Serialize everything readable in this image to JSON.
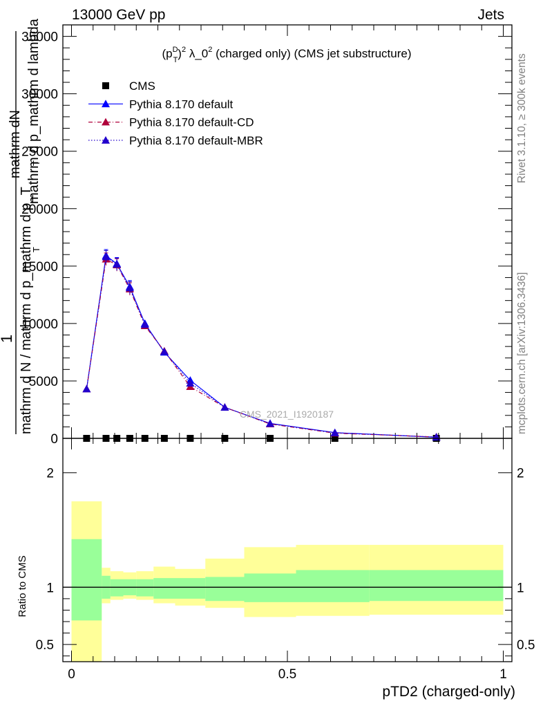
{
  "header": {
    "left": "13000 GeV pp",
    "right": "Jets"
  },
  "side_labels": {
    "rivet": "Rivet 3.1.10, ≥ 300k events",
    "mcplots": "mcplots.cern.ch [arXiv:1306.3436]"
  },
  "watermark": "CMS_2021_I1920187",
  "legend_items": [
    {
      "label": "CMS",
      "color": "#000000",
      "marker": "square",
      "line": "none"
    },
    {
      "label": "Pythia 8.170 default",
      "color": "#0000ff",
      "marker": "triangle",
      "line": "solid"
    },
    {
      "label": "Pythia 8.170 default-CD",
      "color": "#b0003a",
      "marker": "triangle",
      "line": "dashdot"
    },
    {
      "label": "Pythia 8.170 default-MBR",
      "color": "#2200cc",
      "marker": "triangle",
      "line": "dotted"
    }
  ],
  "chart_data": [
    {
      "type": "line",
      "title": "(p_T^D)^2 λ_0^2 (charged only) (CMS jet substructure)",
      "title_parts": {
        "base": "(p",
        "sup1": "D",
        "sub1": "T",
        "mid": ")",
        "sup2": "2",
        "mid2": " λ_0",
        "sup3": "2",
        "tail": " (charged only) (CMS jet substructure)"
      },
      "xlabel": "",
      "ylabel_lines": [
        "mathrm dN",
        "mathrm d p_mathrm d lambda",
        "1",
        "mathrm d N / mathrm d p_mathrm d p_T",
        "T",
        "T"
      ],
      "xlim": [
        -0.02,
        1.02
      ],
      "ylim": [
        0,
        36000
      ],
      "yticks": [
        0,
        5000,
        10000,
        15000,
        20000,
        25000,
        30000,
        35000
      ],
      "ytick_labels": [
        "0",
        "5000",
        "10000",
        "15000",
        "20000",
        "25000",
        "30000",
        "35000"
      ],
      "series": [
        {
          "name": "CMS",
          "color": "#000000",
          "x": [
            0.035,
            0.08,
            0.105,
            0.135,
            0.17,
            0.215,
            0.275,
            0.355,
            0.46,
            0.61,
            0.845
          ],
          "values": [
            0,
            0,
            0,
            0,
            0,
            0,
            0,
            0,
            0,
            0,
            0
          ]
        },
        {
          "name": "Pythia 8.170 default",
          "color": "#0000ff",
          "x": [
            0.035,
            0.08,
            0.105,
            0.135,
            0.17,
            0.215,
            0.275,
            0.355,
            0.46,
            0.61,
            0.845
          ],
          "values": [
            4300,
            15900,
            15200,
            13200,
            10000,
            7500,
            5050,
            2700,
            1300,
            500,
            100
          ]
        },
        {
          "name": "Pythia 8.170 default-CD",
          "color": "#b0003a",
          "x": [
            0.035,
            0.08,
            0.105,
            0.135,
            0.17,
            0.215,
            0.275,
            0.355,
            0.46,
            0.61,
            0.845
          ],
          "values": [
            4300,
            15600,
            15100,
            13000,
            9800,
            7600,
            4500,
            2700,
            1250,
            450,
            120
          ]
        },
        {
          "name": "Pythia 8.170 default-MBR",
          "color": "#2200cc",
          "x": [
            0.035,
            0.08,
            0.105,
            0.135,
            0.17,
            0.215,
            0.275,
            0.355,
            0.46,
            0.61,
            0.845
          ],
          "values": [
            4300,
            15800,
            15150,
            13100,
            9900,
            7550,
            4800,
            2700,
            1280,
            480,
            110
          ]
        }
      ]
    },
    {
      "type": "area",
      "ylabel": "Ratio to CMS",
      "xlabel": "pTD2 (charged-only)",
      "xlim": [
        -0.02,
        1.02
      ],
      "ylim": [
        0.35,
        2.3
      ],
      "yticks": [
        0.5,
        1,
        2
      ],
      "ytick_labels": [
        "0.5",
        "1",
        "2"
      ],
      "xticks": [
        0,
        0.5,
        1
      ],
      "xtick_labels": [
        "0",
        "0.5",
        "1"
      ],
      "reference_line": 1,
      "bins": [
        0,
        0.07,
        0.09,
        0.12,
        0.15,
        0.19,
        0.24,
        0.31,
        0.4,
        0.52,
        0.69,
        1.0
      ],
      "green_band": {
        "color": "#99ff99",
        "upper": [
          1.42,
          1.1,
          1.07,
          1.07,
          1.07,
          1.08,
          1.08,
          1.09,
          1.12,
          1.15,
          1.15
        ],
        "lower": [
          0.71,
          0.9,
          0.92,
          0.93,
          0.92,
          0.9,
          0.9,
          0.88,
          0.87,
          0.87,
          0.88
        ]
      },
      "yellow_band": {
        "color": "#ffff99",
        "upper": [
          1.75,
          1.17,
          1.14,
          1.13,
          1.14,
          1.18,
          1.16,
          1.25,
          1.35,
          1.37,
          1.37
        ],
        "lower": [
          0.35,
          0.86,
          0.89,
          0.9,
          0.89,
          0.86,
          0.84,
          0.82,
          0.74,
          0.75,
          0.76
        ]
      }
    }
  ]
}
